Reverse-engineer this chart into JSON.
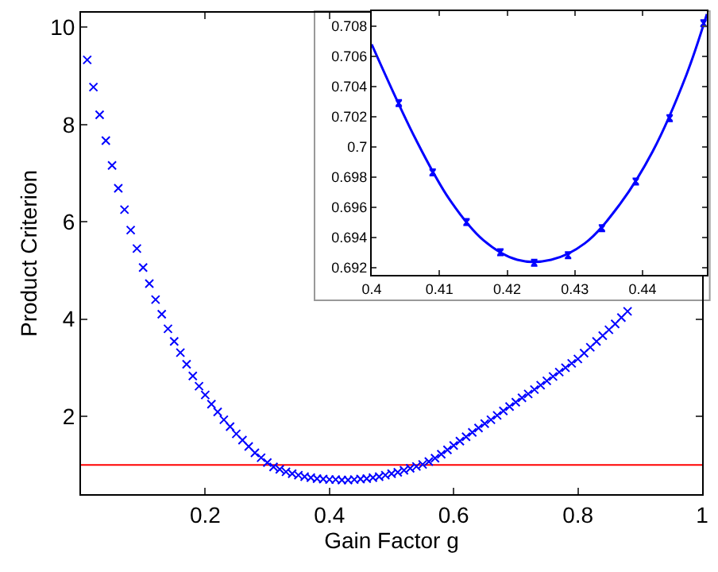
{
  "chart_data": [
    {
      "type": "scatter",
      "xlabel": "Gain Factor g",
      "ylabel": "Product Criterion",
      "xlim": [
        0,
        1
      ],
      "ylim": [
        0.4,
        10.3
      ],
      "xticks": [
        0.2,
        0.4,
        0.6,
        0.8,
        1
      ],
      "yticks": [
        2,
        4,
        6,
        8,
        10
      ],
      "grid": false,
      "marker": "cross",
      "x": [
        0.01,
        0.02,
        0.03,
        0.04,
        0.05,
        0.06,
        0.07,
        0.08,
        0.09,
        0.1,
        0.11,
        0.12,
        0.13,
        0.14,
        0.15,
        0.16,
        0.17,
        0.18,
        0.19,
        0.2,
        0.21,
        0.22,
        0.23,
        0.24,
        0.25,
        0.26,
        0.27,
        0.28,
        0.29,
        0.3,
        0.31,
        0.32,
        0.33,
        0.34,
        0.35,
        0.36,
        0.37,
        0.38,
        0.39,
        0.4,
        0.41,
        0.42,
        0.43,
        0.44,
        0.45,
        0.46,
        0.47,
        0.48,
        0.49,
        0.5,
        0.51,
        0.52,
        0.53,
        0.54,
        0.55,
        0.56,
        0.57,
        0.58,
        0.59,
        0.6,
        0.61,
        0.62,
        0.63,
        0.64,
        0.65,
        0.66,
        0.67,
        0.68,
        0.69,
        0.7,
        0.71,
        0.72,
        0.73,
        0.74,
        0.75,
        0.76,
        0.77,
        0.78,
        0.79,
        0.8,
        0.81,
        0.82,
        0.83,
        0.84,
        0.85,
        0.86,
        0.87,
        0.88
      ],
      "series": [
        {
          "color": "#0000ff",
          "values": [
            9.33,
            8.77,
            8.2,
            7.67,
            7.16,
            6.69,
            6.25,
            5.83,
            5.45,
            5.06,
            4.73,
            4.4,
            4.1,
            3.8,
            3.54,
            3.31,
            3.07,
            2.83,
            2.62,
            2.44,
            2.25,
            2.09,
            1.93,
            1.79,
            1.64,
            1.51,
            1.38,
            1.25,
            1.15,
            1.05,
            0.96,
            0.91,
            0.86,
            0.82,
            0.79,
            0.76,
            0.74,
            0.72,
            0.71,
            0.7,
            0.7,
            0.69,
            0.69,
            0.7,
            0.71,
            0.72,
            0.74,
            0.76,
            0.79,
            0.82,
            0.85,
            0.89,
            0.93,
            0.97,
            1.01,
            1.07,
            1.14,
            1.22,
            1.31,
            1.4,
            1.49,
            1.58,
            1.67,
            1.76,
            1.85,
            1.93,
            2.02,
            2.11,
            2.2,
            2.29,
            2.38,
            2.46,
            2.55,
            2.64,
            2.73,
            2.82,
            2.91,
            3.0,
            3.09,
            3.18,
            3.3,
            3.42,
            3.54,
            3.66,
            3.78,
            3.9,
            4.03,
            4.16
          ]
        }
      ],
      "ref_lines": [
        {
          "axis": "y",
          "value": 1,
          "color": "#ff0000"
        }
      ]
    },
    {
      "type": "line",
      "xlim": [
        0.4,
        0.4495
      ],
      "ylim": [
        0.6915,
        0.709
      ],
      "xticks": [
        0.4,
        0.41,
        0.42,
        0.43,
        0.44
      ],
      "yticks": [
        0.692,
        0.694,
        0.696,
        0.698,
        0.7,
        0.702,
        0.704,
        0.706,
        0.708
      ],
      "grid": false,
      "series": [
        {
          "type": "line",
          "color": "#0000ff",
          "marker": "none",
          "x": [
            0.4,
            0.4065,
            0.4115,
            0.4165,
            0.4215,
            0.4265,
            0.4315,
            0.4365,
            0.4415,
            0.4465,
            0.4495
          ],
          "values": [
            0.7068,
            0.7005,
            0.6965,
            0.6938,
            0.6925,
            0.6925,
            0.6936,
            0.6961,
            0.6997,
            0.7048,
            0.7088
          ]
        },
        {
          "type": "scatter",
          "color": "#0000ff",
          "marker": "cross",
          "x": [
            0.404,
            0.409,
            0.414,
            0.419,
            0.424,
            0.429,
            0.434,
            0.439,
            0.444,
            0.449
          ],
          "values": [
            0.7029,
            0.6983,
            0.695,
            0.693,
            0.6923,
            0.6928,
            0.6946,
            0.6977,
            0.7019,
            0.7082
          ],
          "errors": [
            0.0002,
            0.0002,
            0.0002,
            0.0002,
            0.0002,
            0.0002,
            0.0002,
            0.0002,
            0.0002,
            0.0002
          ]
        }
      ]
    }
  ]
}
